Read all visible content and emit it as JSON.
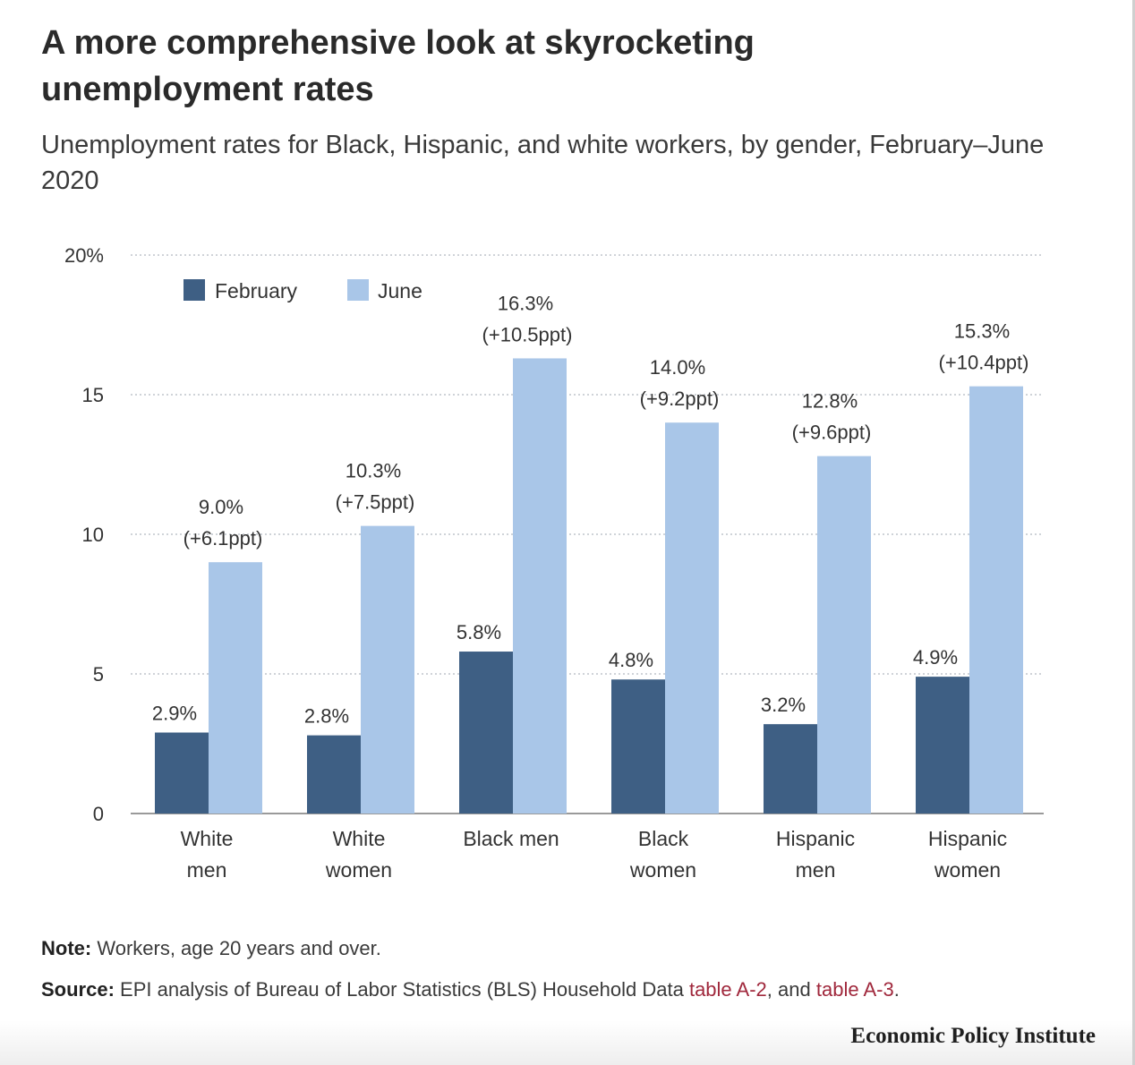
{
  "title": "A more comprehensive look at skyrocketing unemployment rates",
  "subtitle": "Unemployment rates for Black, Hispanic, and white workers, by gender, February–June 2020",
  "note": {
    "label": "Note:",
    "text": "Workers, age 20 years and over."
  },
  "source": {
    "label": "Source:",
    "text": "EPI analysis of Bureau of Labor Statistics (BLS) Household Data",
    "link1": "table A-2",
    "mid": ", and",
    "link2": "table A-3",
    "end": "."
  },
  "brand": "Economic Policy Institute",
  "colors": {
    "february": "#3e5f84",
    "june": "#a9c6e8",
    "link": "#a0283c",
    "grid": "#cfd3d8"
  },
  "chart_data": {
    "type": "bar",
    "categories": [
      [
        "White",
        "men"
      ],
      [
        "White",
        "women"
      ],
      [
        "Black men"
      ],
      [
        "Black",
        "women"
      ],
      [
        "Hispanic",
        "men"
      ],
      [
        "Hispanic",
        "women"
      ]
    ],
    "series": [
      {
        "name": "February",
        "values": [
          2.9,
          2.8,
          5.8,
          4.8,
          3.2,
          4.9
        ],
        "labels": [
          "2.9%",
          "2.8%",
          "5.8%",
          "4.8%",
          "3.2%",
          "4.9%"
        ]
      },
      {
        "name": "June",
        "values": [
          9.0,
          10.3,
          16.3,
          14.0,
          12.8,
          15.3
        ],
        "labels": [
          "9.0%",
          "10.3%",
          "16.3%",
          "14.0%",
          "12.8%",
          "15.3%"
        ],
        "changes": [
          "(+6.1ppt)",
          "(+7.5ppt)",
          "(+10.5ppt)",
          "(+9.2ppt)",
          "(+9.6ppt)",
          "(+10.4ppt)"
        ]
      }
    ],
    "ylim": [
      0,
      20
    ],
    "yticks": [
      "0",
      "5",
      "10",
      "15",
      "20%"
    ],
    "ytick_values": [
      0,
      5,
      10,
      15,
      20
    ],
    "grid": true,
    "legend": "top-left"
  }
}
